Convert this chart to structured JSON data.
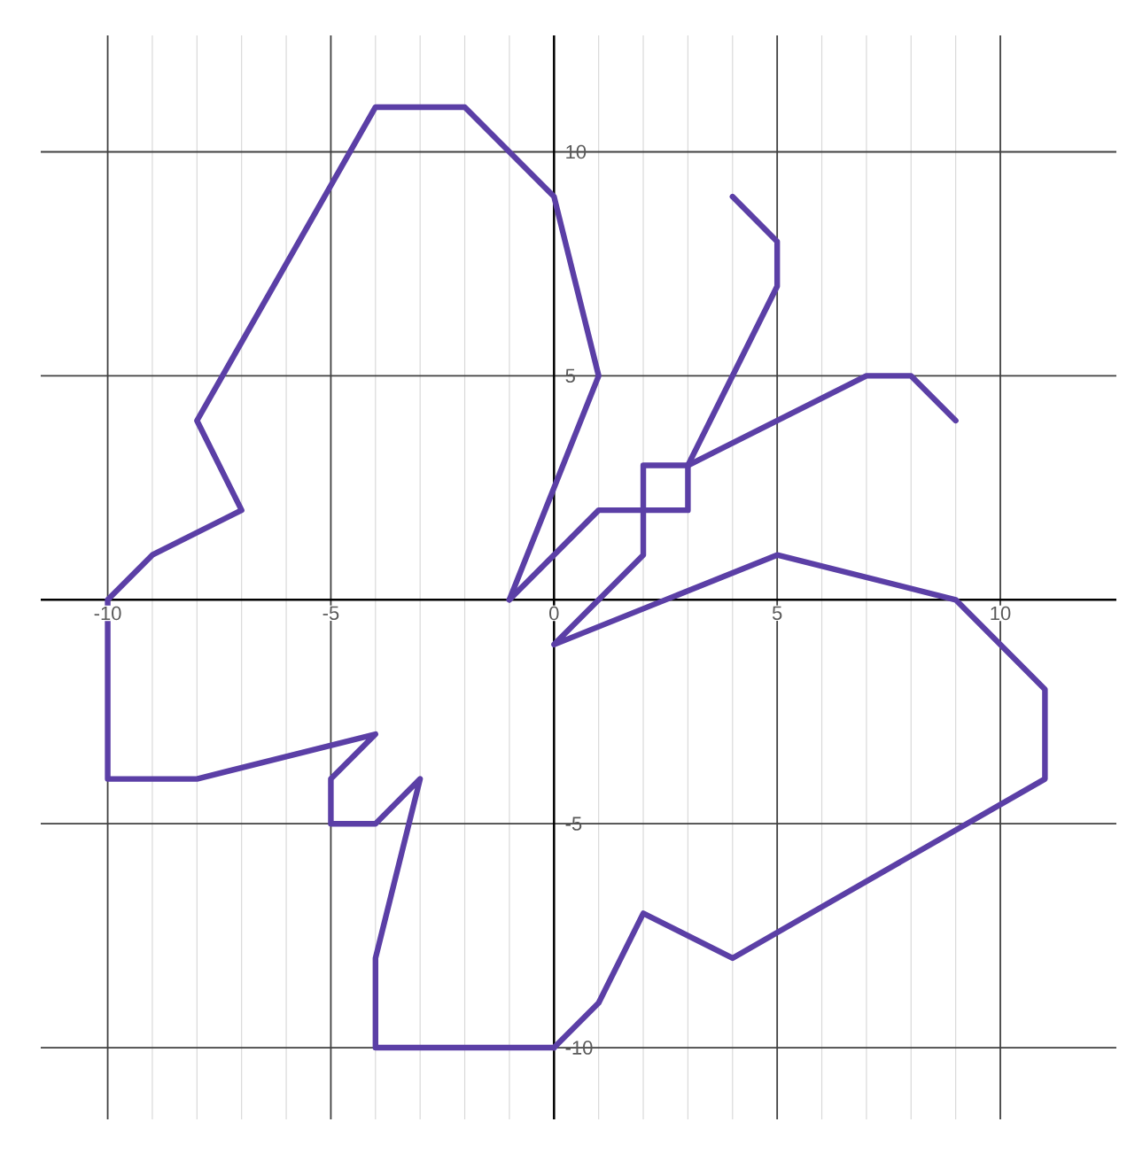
{
  "chart_data": {
    "type": "line",
    "xlim": [
      -11.5,
      12.6
    ],
    "ylim": [
      -11.6,
      12.6
    ],
    "xticks": [
      -10,
      -5,
      0,
      5,
      10
    ],
    "yticks": [
      -10,
      -5,
      5,
      10
    ],
    "grid": true,
    "marker": "none",
    "line_style": "solid",
    "series": [
      {
        "color": "#5b3fa6",
        "x": [
          -1,
          1,
          0,
          -2,
          -4,
          -8,
          -7,
          -9,
          -10,
          -10,
          -8,
          -4,
          -5,
          -5,
          -4,
          -3,
          -4,
          -4,
          0
        ],
        "values": [
          0,
          5,
          9,
          11,
          11,
          4,
          2,
          1,
          0,
          -4,
          -4,
          -3,
          -4,
          -5,
          -5,
          -4,
          -8,
          -10,
          -10
        ]
      },
      {
        "color": "#5b3fa6",
        "x": [
          0,
          1,
          2,
          4,
          11,
          11,
          9,
          5,
          0,
          2,
          2,
          3,
          3,
          1,
          -1
        ],
        "values": [
          -10,
          -9,
          -7,
          -8,
          -4,
          -2,
          0,
          1,
          -1,
          1,
          3,
          3,
          2,
          2,
          0
        ]
      },
      {
        "color": "#5b3fa6",
        "x": [
          3,
          5,
          5,
          4
        ],
        "values": [
          3,
          7,
          8,
          9
        ]
      },
      {
        "color": "#5b3fa6",
        "x": [
          3,
          7,
          8,
          9
        ],
        "values": [
          3,
          5,
          5,
          4
        ]
      }
    ]
  }
}
